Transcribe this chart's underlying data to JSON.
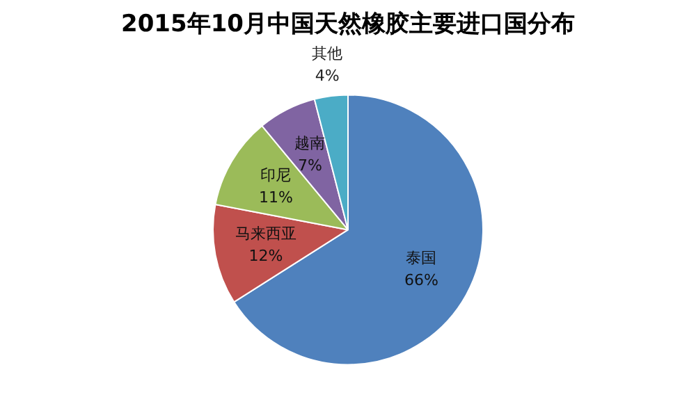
{
  "chart_data": {
    "type": "pie",
    "title": "2015年10月中国天然橡胶主要进口国分布",
    "categories": [
      "泰国",
      "马来西亚",
      "印尼",
      "越南",
      "其他"
    ],
    "values": [
      66,
      12,
      11,
      7,
      4
    ],
    "value_labels": [
      "66%",
      "12%",
      "11%",
      "7%",
      "4%"
    ],
    "colors": [
      "#4f81bd",
      "#c0504d",
      "#9bbb59",
      "#8064a2",
      "#4bacc6"
    ],
    "legend": false
  }
}
